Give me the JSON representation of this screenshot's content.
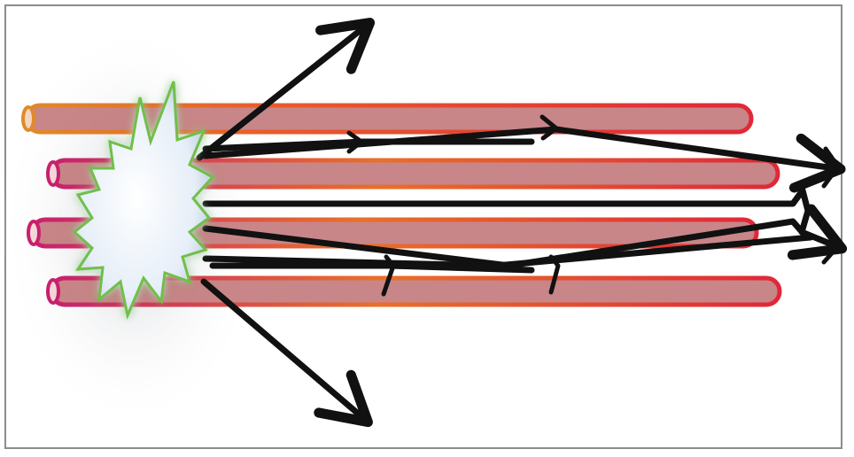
{
  "colors": {
    "frame": "#8c8c8c",
    "tube_start": "#e08a2a",
    "tube_mid": "#e8462e",
    "tube_end": "#e02838",
    "tube_start_alt": "#c8206e",
    "tube_fill": "#b86466",
    "arrow": "#111111",
    "burst_fill": "#eef4fb",
    "burst_glow": "#8fd060"
  },
  "icons": [
    "starburst-icon",
    "arrow-icon"
  ],
  "diagram": {
    "fibers": [
      {
        "id": "fiber-1",
        "start_color": "orange"
      },
      {
        "id": "fiber-2",
        "start_color": "magenta"
      },
      {
        "id": "fiber-3",
        "start_color": "magenta"
      },
      {
        "id": "fiber-4",
        "start_color": "magenta"
      }
    ],
    "rays": [
      {
        "id": "ray-escape-up",
        "guided": false
      },
      {
        "id": "ray-escape-down",
        "guided": false
      },
      {
        "id": "ray-guided-1",
        "guided": true
      },
      {
        "id": "ray-guided-2",
        "guided": true
      },
      {
        "id": "ray-guided-3",
        "guided": true
      },
      {
        "id": "ray-guided-4",
        "guided": true
      }
    ]
  }
}
